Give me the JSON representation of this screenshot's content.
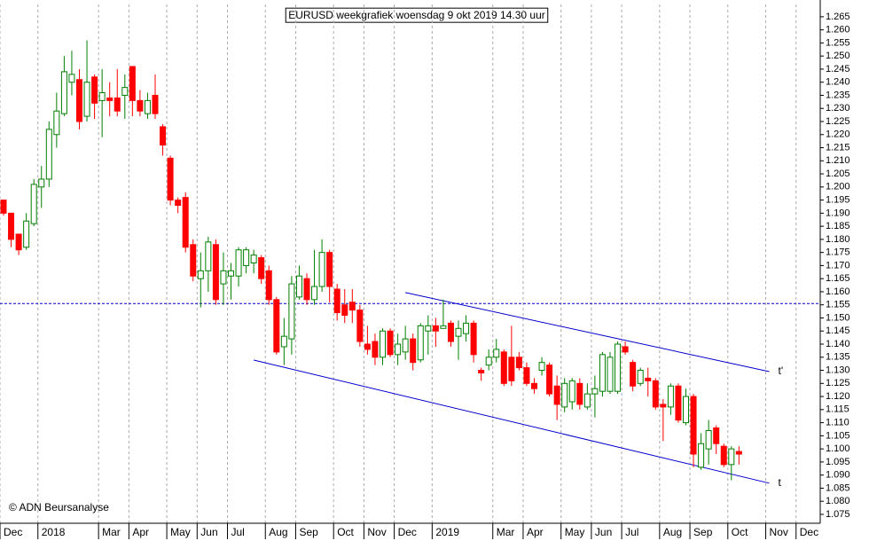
{
  "chart_data": {
    "type": "candlestick",
    "title": "EURUSD weekgrafiek woensdag 9 okt 2019 14.30 uur",
    "source": "© ADN Beursanalyse",
    "categories": [
      "Dec",
      null,
      null,
      null,
      null,
      "2018",
      null,
      null,
      null,
      null,
      null,
      null,
      null,
      "Mar",
      null,
      null,
      null,
      "Apr",
      null,
      null,
      null,
      null,
      "May",
      null,
      null,
      null,
      "Jun",
      null,
      null,
      null,
      "Jul",
      null,
      null,
      null,
      null,
      "Aug",
      null,
      null,
      null,
      "Sep",
      null,
      null,
      null,
      null,
      "Oct",
      null,
      null,
      null,
      "Nov",
      null,
      null,
      null,
      "Dec",
      null,
      null,
      null,
      null,
      "2019",
      null,
      null,
      null,
      null,
      null,
      null,
      null,
      "Mar",
      null,
      null,
      null,
      "Apr",
      null,
      null,
      null,
      null,
      "May",
      null,
      null,
      null,
      "Jun",
      null,
      null,
      null,
      "Jul",
      null,
      null,
      null,
      null,
      "Aug",
      null,
      null,
      null,
      "Sep",
      null,
      null,
      null,
      null,
      "Oct",
      null,
      null,
      null,
      null,
      "Nov",
      null,
      null,
      null,
      "Dec",
      null,
      null
    ],
    "open": [
      1.195,
      1.19,
      1.182,
      1.177,
      1.186,
      1.2,
      1.203,
      1.22,
      1.228,
      1.24,
      1.241,
      1.227,
      1.242,
      1.233,
      1.234,
      1.234,
      1.235,
      1.246,
      1.233,
      1.228,
      1.235,
      1.223,
      1.211,
      1.195,
      1.196,
      1.178,
      1.165,
      1.168,
      1.178,
      1.163,
      1.166,
      1.166,
      1.17,
      1.171,
      1.173,
      1.168,
      1.157,
      1.139,
      1.142,
      1.158,
      1.165,
      1.157,
      1.162,
      1.175,
      1.161,
      1.155,
      1.156,
      1.153,
      1.14,
      1.141,
      1.135,
      1.145,
      1.136,
      1.137,
      1.142,
      1.134,
      1.145,
      1.147,
      1.146,
      1.148,
      1.143,
      1.144,
      1.148,
      1.13,
      1.132,
      1.135,
      1.137,
      1.135,
      1.135,
      1.131,
      1.125,
      1.13,
      1.132,
      1.124,
      1.116,
      1.118,
      1.125,
      1.116,
      1.121,
      1.122,
      1.122,
      1.122,
      1.139,
      1.133,
      1.125,
      1.127,
      1.126,
      1.117,
      1.116,
      1.124,
      1.11,
      1.12,
      1.093,
      1.1,
      1.108,
      1.101,
      1.094,
      1.099,
      null,
      null,
      null,
      null,
      null,
      null,
      null,
      null,
      null,
      null
    ],
    "high": [
      1.195,
      1.19,
      1.182,
      1.19,
      1.203,
      1.208,
      1.225,
      1.236,
      1.25,
      1.252,
      1.245,
      1.256,
      1.243,
      1.245,
      1.24,
      1.245,
      1.243,
      1.246,
      1.237,
      1.236,
      1.243,
      1.224,
      1.212,
      1.196,
      1.198,
      1.18,
      1.175,
      1.181,
      1.18,
      1.175,
      1.171,
      1.177,
      1.177,
      1.176,
      1.174,
      1.17,
      1.158,
      1.15,
      1.166,
      1.17,
      1.167,
      1.176,
      1.18,
      1.176,
      1.163,
      1.161,
      1.161,
      1.155,
      1.147,
      1.144,
      1.146,
      1.146,
      1.144,
      1.147,
      1.144,
      1.148,
      1.151,
      1.15,
      1.157,
      1.149,
      1.149,
      1.151,
      1.149,
      1.131,
      1.138,
      1.142,
      1.138,
      1.147,
      1.137,
      1.133,
      1.127,
      1.135,
      1.133,
      1.128,
      1.127,
      1.127,
      1.127,
      1.125,
      1.128,
      1.137,
      1.137,
      1.141,
      1.141,
      1.134,
      1.131,
      1.131,
      1.127,
      1.119,
      1.125,
      1.125,
      1.123,
      1.121,
      1.106,
      1.111,
      1.109,
      1.102,
      1.101,
      1.101,
      null,
      null,
      null,
      null,
      null,
      null,
      null,
      null,
      null,
      null
    ],
    "low": [
      1.189,
      1.177,
      1.174,
      1.176,
      1.185,
      1.192,
      1.2,
      1.215,
      1.227,
      1.235,
      1.222,
      1.225,
      1.226,
      1.219,
      1.227,
      1.227,
      1.226,
      1.227,
      1.227,
      1.226,
      1.226,
      1.212,
      1.193,
      1.19,
      1.175,
      1.164,
      1.154,
      1.16,
      1.155,
      1.155,
      1.157,
      1.162,
      1.167,
      1.167,
      1.163,
      1.155,
      1.136,
      1.132,
      1.136,
      1.157,
      1.155,
      1.155,
      1.16,
      1.156,
      1.149,
      1.148,
      1.148,
      1.139,
      1.136,
      1.132,
      1.132,
      1.135,
      1.132,
      1.134,
      1.13,
      1.133,
      1.136,
      1.139,
      1.146,
      1.139,
      1.134,
      1.141,
      1.133,
      1.126,
      1.13,
      1.133,
      1.124,
      1.124,
      1.13,
      1.124,
      1.121,
      1.128,
      1.12,
      1.111,
      1.114,
      1.115,
      1.115,
      1.115,
      1.112,
      1.12,
      1.121,
      1.121,
      1.136,
      1.122,
      1.124,
      1.12,
      1.115,
      1.103,
      1.113,
      1.11,
      1.109,
      1.093,
      1.092,
      1.094,
      1.098,
      1.093,
      1.088,
      1.094,
      null,
      null,
      null,
      null,
      null,
      null,
      null,
      null,
      null,
      null
    ],
    "close": [
      1.19,
      1.18,
      1.176,
      1.187,
      1.201,
      1.203,
      1.222,
      1.229,
      1.244,
      1.243,
      1.225,
      1.24,
      1.232,
      1.236,
      1.233,
      1.229,
      1.238,
      1.233,
      1.229,
      1.233,
      1.228,
      1.216,
      1.195,
      1.193,
      1.177,
      1.166,
      1.168,
      1.179,
      1.157,
      1.168,
      1.168,
      1.176,
      1.176,
      1.174,
      1.165,
      1.157,
      1.137,
      1.143,
      1.163,
      1.166,
      1.157,
      1.162,
      1.175,
      1.162,
      1.152,
      1.151,
      1.153,
      1.141,
      1.138,
      1.135,
      1.145,
      1.136,
      1.14,
      1.142,
      1.133,
      1.147,
      1.147,
      1.145,
      1.147,
      1.141,
      1.146,
      1.148,
      1.136,
      1.129,
      1.135,
      1.138,
      1.125,
      1.126,
      1.131,
      1.125,
      1.123,
      1.133,
      1.121,
      1.117,
      1.125,
      1.126,
      1.117,
      1.121,
      1.123,
      1.136,
      1.135,
      1.14,
      1.137,
      1.124,
      1.13,
      1.126,
      1.116,
      1.116,
      1.124,
      1.111,
      1.12,
      1.098,
      1.102,
      1.107,
      1.102,
      1.094,
      1.1,
      1.098,
      null,
      null,
      null,
      null,
      null,
      null,
      null,
      null,
      null,
      null
    ],
    "up_color": "#008000",
    "down_color": "#ff0000",
    "ylim": [
      1.0716,
      1.2697
    ],
    "yticks": [
      1.075,
      {
        "value": 1.08,
        "label": "1.080"
      },
      1.085,
      {
        "value": 1.09,
        "label": "1.090"
      },
      1.095,
      {
        "value": 1.1,
        "label": "1.100"
      },
      1.105,
      {
        "value": 1.11,
        "label": "1.110"
      },
      1.115,
      {
        "value": 1.12,
        "label": "1.120"
      },
      1.125,
      {
        "value": 1.13,
        "label": "1.130"
      },
      1.135,
      {
        "value": 1.14,
        "label": "1.140"
      },
      1.145,
      {
        "value": 1.15,
        "label": "1.150"
      },
      1.155,
      {
        "value": 1.16,
        "label": "1.160"
      },
      1.165,
      {
        "value": 1.17,
        "label": "1.170"
      },
      1.175,
      {
        "value": 1.18,
        "label": "1.180"
      },
      1.185,
      {
        "value": 1.19,
        "label": "1.190"
      },
      1.195,
      {
        "value": 1.2,
        "label": "1.200"
      },
      1.205,
      {
        "value": 1.21,
        "label": "1.210"
      },
      1.215,
      {
        "value": 1.22,
        "label": "1.220"
      },
      1.225,
      {
        "value": 1.23,
        "label": "1.230"
      },
      1.235,
      {
        "value": 1.24,
        "label": "1.240"
      },
      1.245,
      {
        "value": 1.25,
        "label": "1.250"
      },
      1.255,
      {
        "value": 1.26,
        "label": "1.260"
      },
      1.265
    ],
    "grid": "x",
    "hline": {
      "value": 1.1555,
      "color": "#0000cc"
    },
    "trendlines": [
      {
        "label": "t'",
        "color": "#0000cc",
        "start": [
          53,
          1.1597
        ],
        "end": [
          101,
          1.1295
        ]
      },
      {
        "label": "t",
        "color": "#0000cc",
        "start": [
          33,
          1.1339
        ],
        "end": [
          101,
          1.0869
        ]
      }
    ]
  }
}
